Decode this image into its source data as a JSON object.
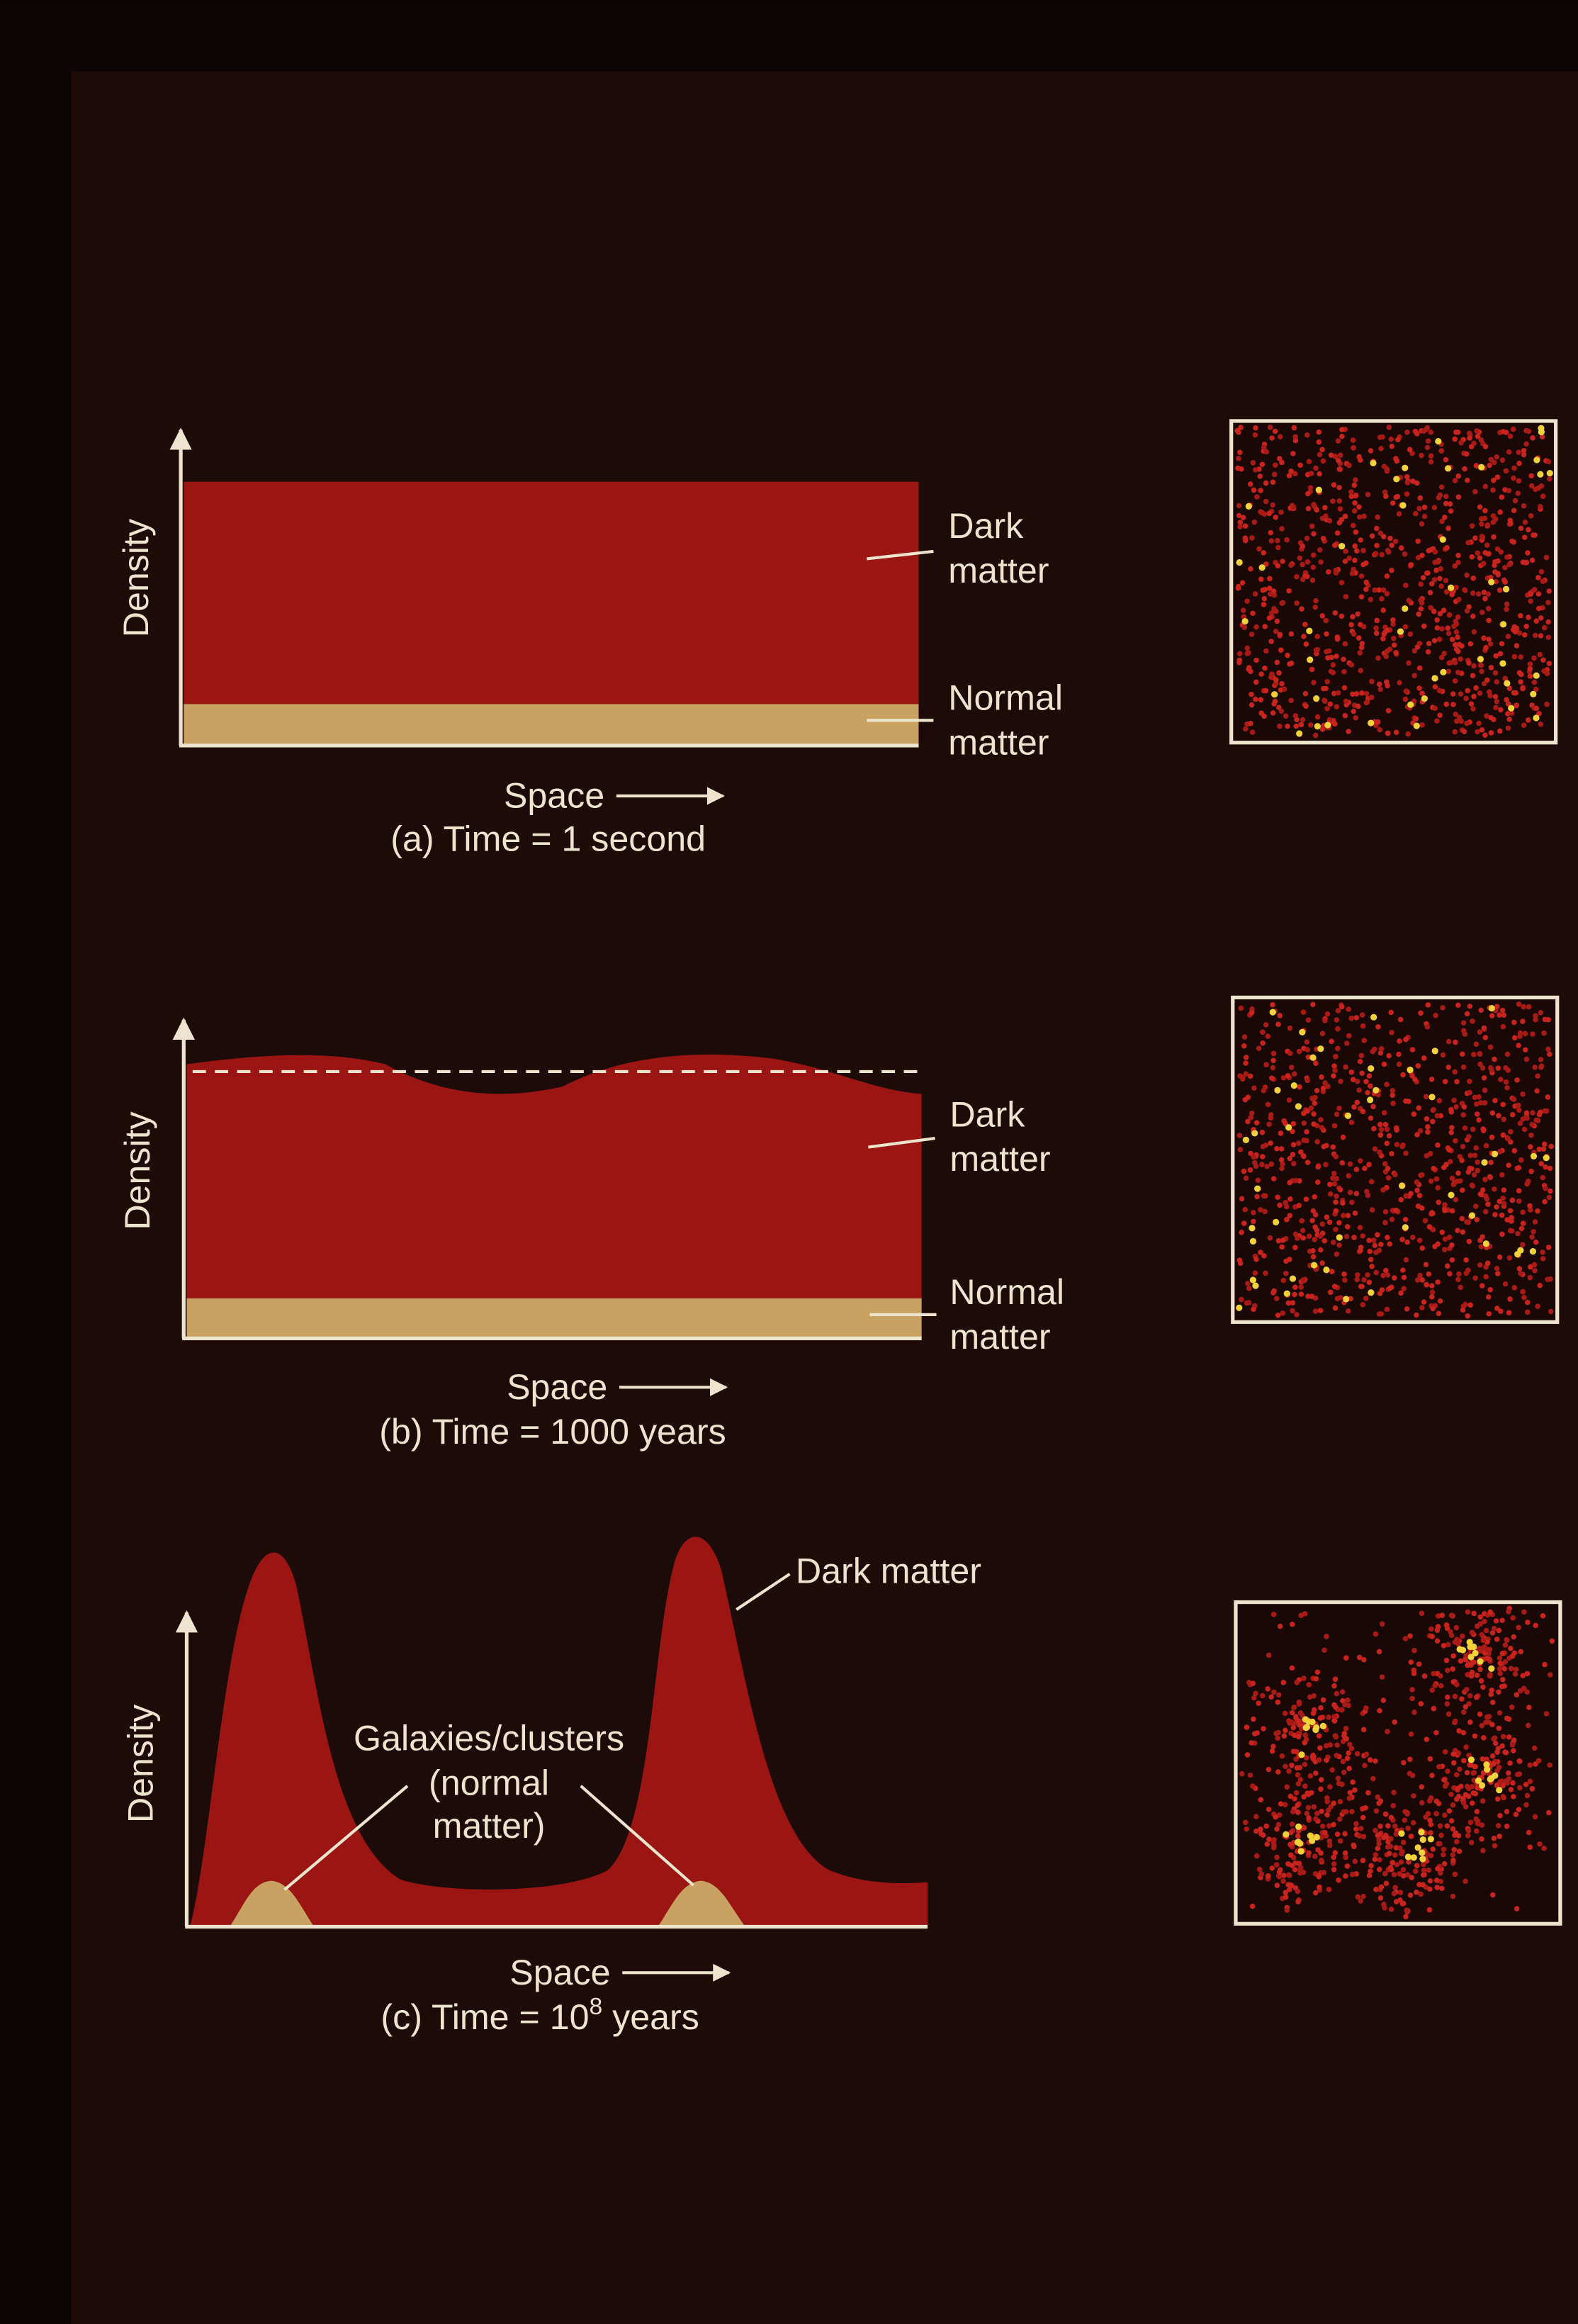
{
  "panels": [
    {
      "y_label": "Density",
      "x_label": "Space",
      "caption": "(a) Time = 1 second",
      "dark_matter": [
        "Dark",
        "matter"
      ],
      "normal_matter": [
        "Normal",
        "matter"
      ]
    },
    {
      "y_label": "Density",
      "x_label": "Space",
      "caption": "(b) Time = 1000 years",
      "dark_matter": [
        "Dark",
        "matter"
      ],
      "normal_matter": [
        "Normal",
        "matter"
      ]
    },
    {
      "y_label": "Density",
      "x_label": "Space",
      "caption": {
        "text": "(c) Time = 10",
        "sup": "8",
        "after": " years"
      },
      "dark_matter": "Dark matter",
      "normal_matter": [
        "Galaxies/clusters",
        "(normal",
        "matter)"
      ]
    }
  ]
}
